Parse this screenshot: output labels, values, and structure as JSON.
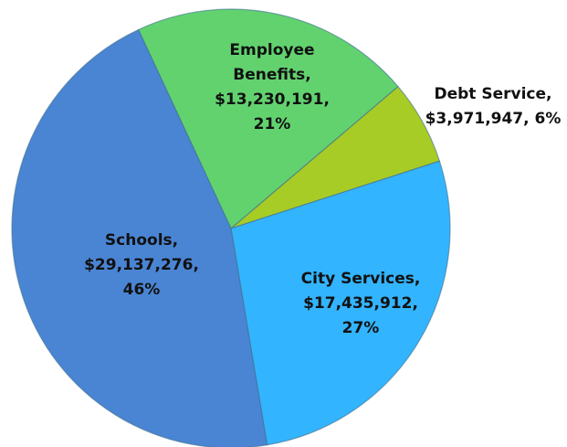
{
  "chart_data": {
    "type": "pie",
    "categories": [
      "Employee Benefits,",
      "Debt Service,",
      "City Services,",
      "Schools,"
    ],
    "values": [
      13230191,
      3971947,
      17435912,
      29137276
    ],
    "value_labels": [
      "$13,230,191,",
      "$3,971,947,",
      "$17,435,912,",
      "$29,137,276,"
    ],
    "percents": [
      21,
      6,
      27,
      46
    ],
    "percent_labels": [
      "21%",
      "6%",
      "27%",
      "46%"
    ],
    "colors": [
      "#62d26f",
      "#a8cc26",
      "#33b4ff",
      "#4a85d4"
    ]
  }
}
